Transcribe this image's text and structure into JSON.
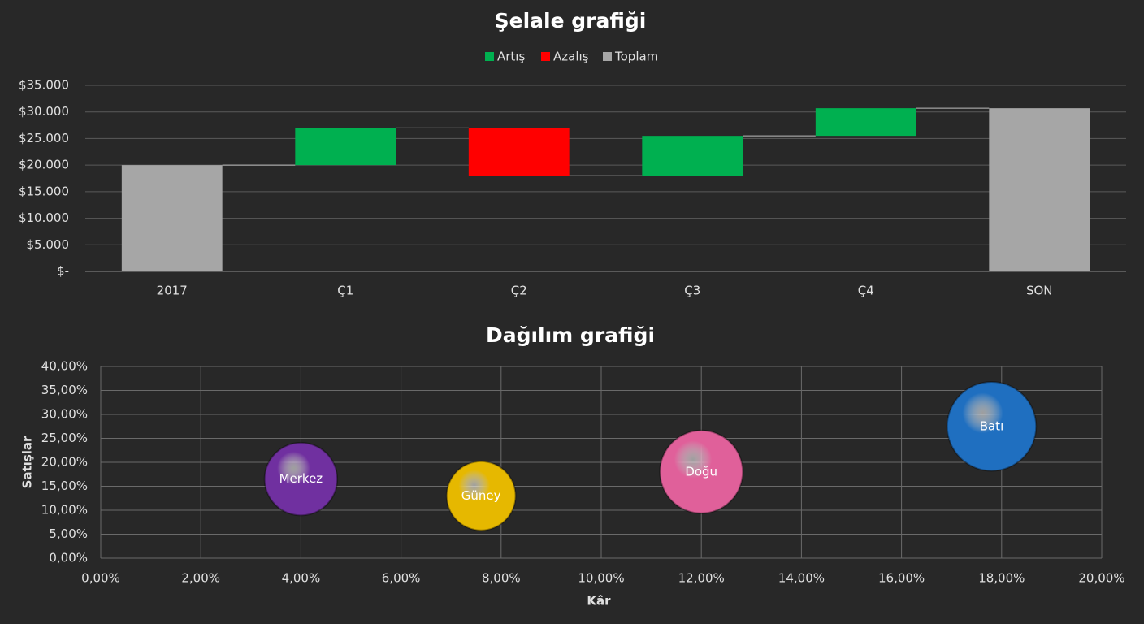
{
  "chart_data": [
    {
      "type": "waterfall",
      "title": "Şelale grafiği",
      "categories": [
        "2017",
        "Ç1",
        "Ç2",
        "Ç3",
        "Ç4",
        "SON"
      ],
      "series": [
        {
          "name": "Artış",
          "color": "#00b050",
          "values": [
            null,
            7000,
            null,
            7500,
            5200,
            null
          ]
        },
        {
          "name": "Azalış",
          "color": "#ff0000",
          "values": [
            null,
            null,
            -9000,
            null,
            null,
            null
          ]
        },
        {
          "name": "Toplam",
          "color": "#a6a6a6",
          "values": [
            20000,
            null,
            null,
            null,
            null,
            30700
          ]
        }
      ],
      "ylim": [
        0,
        35000
      ],
      "yticks": [
        {
          "value": 0,
          "label": "$-"
        },
        {
          "value": 5000,
          "label": "$5.000"
        },
        {
          "value": 10000,
          "label": "$10.000"
        },
        {
          "value": 15000,
          "label": "$15.000"
        },
        {
          "value": 20000,
          "label": "$20.000"
        },
        {
          "value": 25000,
          "label": "$25.000"
        },
        {
          "value": 30000,
          "label": "$30.000"
        },
        {
          "value": 35000,
          "label": "$35.000"
        }
      ],
      "grid": true,
      "legend": "top"
    },
    {
      "type": "bubble",
      "title": "Dağılım grafiği",
      "xlabel": "Kâr",
      "ylabel": "Satışlar",
      "points": [
        {
          "label": "Merkez",
          "x": 4,
          "y": 16.5,
          "size": 20,
          "color": "#7030a0"
        },
        {
          "label": "Güney",
          "x": 7.6,
          "y": 13,
          "size": 18,
          "color": "#e6b800"
        },
        {
          "label": "Doğu",
          "x": 12,
          "y": 18,
          "size": 26,
          "color": "#e0609a"
        },
        {
          "label": "Batı",
          "x": 17.8,
          "y": 27.5,
          "size": 30,
          "color": "#1f6fc0"
        }
      ],
      "xlim": [
        0,
        20
      ],
      "xticks": [
        {
          "value": 0,
          "label": "0,00%"
        },
        {
          "value": 2,
          "label": "2,00%"
        },
        {
          "value": 4,
          "label": "4,00%"
        },
        {
          "value": 6,
          "label": "6,00%"
        },
        {
          "value": 8,
          "label": "8,00%"
        },
        {
          "value": 10,
          "label": "10,00%"
        },
        {
          "value": 12,
          "label": "12,00%"
        },
        {
          "value": 14,
          "label": "14,00%"
        },
        {
          "value": 16,
          "label": "16,00%"
        },
        {
          "value": 18,
          "label": "18,00%"
        },
        {
          "value": 20,
          "label": "20,00%"
        }
      ],
      "ylim": [
        0,
        40
      ],
      "yticks": [
        {
          "value": 0,
          "label": "0,00%"
        },
        {
          "value": 5,
          "label": "5,00%"
        },
        {
          "value": 10,
          "label": "10,00%"
        },
        {
          "value": 15,
          "label": "15,00%"
        },
        {
          "value": 20,
          "label": "20,00%"
        },
        {
          "value": 25,
          "label": "25,00%"
        },
        {
          "value": 30,
          "label": "30,00%"
        },
        {
          "value": 35,
          "label": "35,00%"
        },
        {
          "value": 40,
          "label": "40,00%"
        }
      ],
      "grid": true
    }
  ]
}
